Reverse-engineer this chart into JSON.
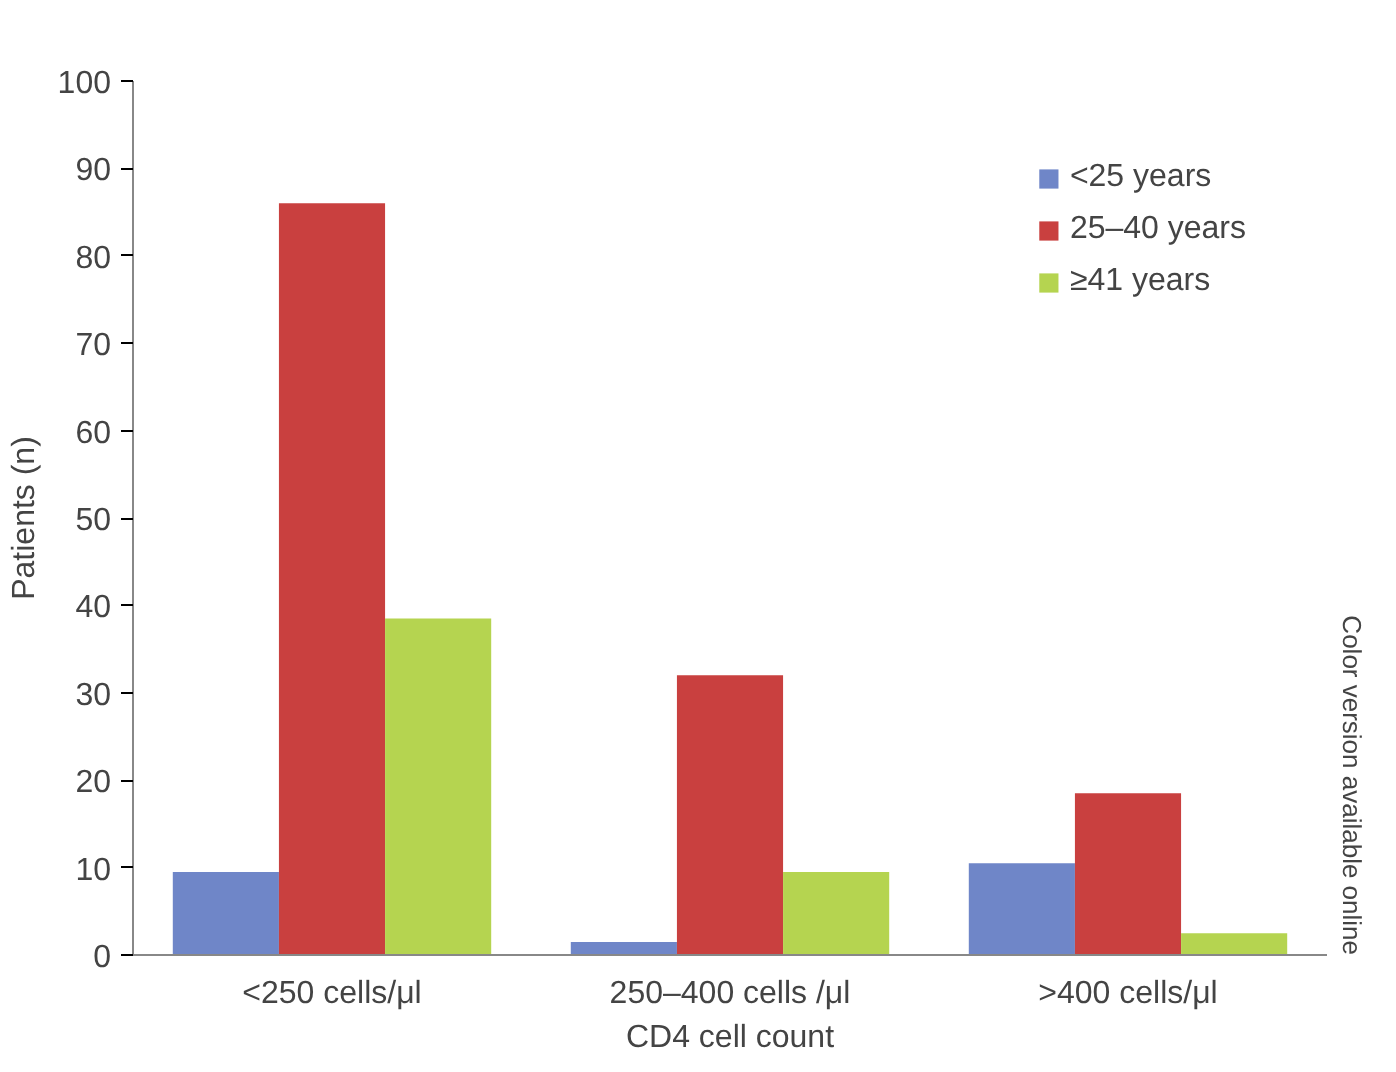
{
  "chart_data": {
    "type": "bar",
    "xlabel": "CD4 cell count",
    "ylabel": "Patients (n)",
    "categories": [
      "<250 cells/μl",
      "250–400 cells /μl",
      ">400 cells/μl"
    ],
    "series": [
      {
        "name": "<25 years",
        "color": "#6f86c8",
        "values": [
          9.5,
          1.5,
          10.5
        ]
      },
      {
        "name": "25–40 years",
        "color": "#c9403f",
        "values": [
          86,
          32,
          18.5
        ]
      },
      {
        "name": "≥41 years",
        "color": "#b5d450",
        "values": [
          38.5,
          9.5,
          2.5
        ]
      }
    ],
    "ylim": [
      0,
      100
    ],
    "yticks": [
      0,
      10,
      20,
      30,
      40,
      50,
      60,
      70,
      80,
      90,
      100
    ],
    "legend": "top right",
    "grid": false,
    "annotations": [
      "Color version available online"
    ]
  }
}
